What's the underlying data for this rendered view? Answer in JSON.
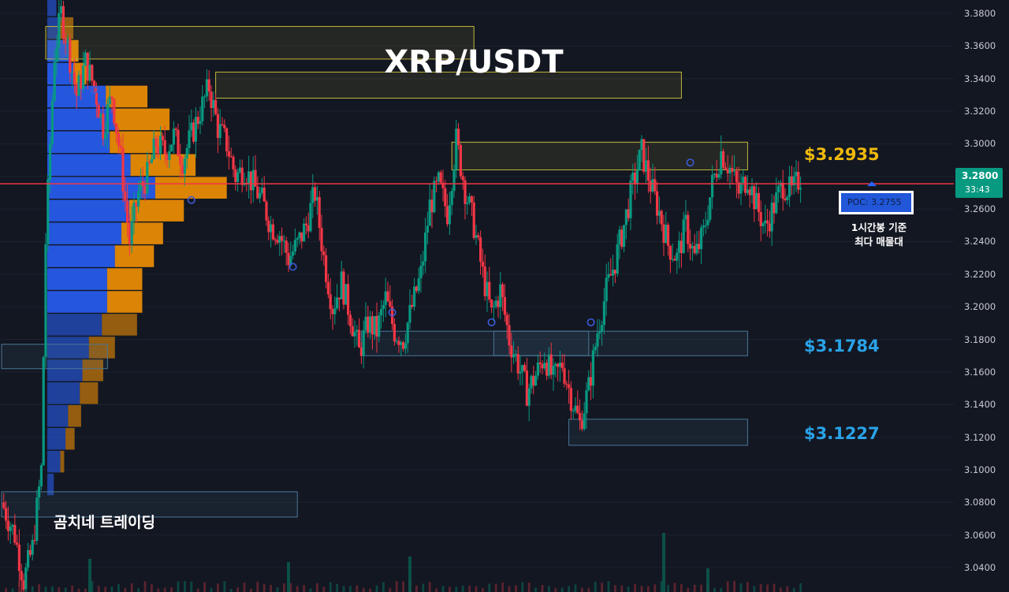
{
  "chart_data": {
    "type": "candlestick",
    "title": "XRP/USDT",
    "watermark": "곰치네 트레이딩",
    "y_axis": {
      "ylim": [
        3.03,
        3.39
      ],
      "ticks": [
        "3.3800",
        "3.3600",
        "3.3400",
        "3.3200",
        "3.3000",
        "3.2800",
        "3.2600",
        "3.2400",
        "3.2200",
        "3.2000",
        "3.1800",
        "3.1600",
        "3.1400",
        "3.1200",
        "3.1000",
        "3.0800",
        "3.0600",
        "3.0400"
      ]
    },
    "current_price": {
      "value": "3.2800",
      "countdown": "33:43"
    },
    "poc": {
      "label": "POC: 3.2755",
      "value": 3.2755,
      "note_line1": "1시간봉 기준",
      "note_line2": "최다 매물대"
    },
    "levels": [
      {
        "label": "$3.2935",
        "value": 3.2935,
        "color": "#f0b90b"
      },
      {
        "label": "$3.1784",
        "value": 3.1784,
        "color": "#29a3e8"
      },
      {
        "label": "$3.1227",
        "value": 3.1227,
        "color": "#29a3e8"
      }
    ],
    "zones": [
      {
        "kind": "supply",
        "from_bar": 20,
        "to_bar": 214,
        "top": 3.372,
        "bottom": 3.352
      },
      {
        "kind": "supply",
        "from_bar": 97,
        "to_bar": 308,
        "top": 3.344,
        "bottom": 3.328
      },
      {
        "kind": "supply",
        "from_bar": 204,
        "to_bar": 338,
        "top": 3.301,
        "bottom": 3.284
      },
      {
        "kind": "demand",
        "from_bar": 0,
        "to_bar": 48,
        "top": 3.177,
        "bottom": 3.162
      },
      {
        "kind": "demand",
        "from_bar": 163,
        "to_bar": 338,
        "top": 3.185,
        "bottom": 3.17
      },
      {
        "kind": "demand",
        "from_bar": 223,
        "to_bar": 266,
        "top": 3.185,
        "bottom": 3.17
      },
      {
        "kind": "demand",
        "from_bar": 257,
        "to_bar": 338,
        "top": 3.131,
        "bottom": 3.115
      },
      {
        "kind": "demand",
        "from_bar": 0,
        "to_bar": 134,
        "top": 3.0865,
        "bottom": 3.071
      }
    ],
    "markers": [
      {
        "bar": 42,
        "value": 3.333
      },
      {
        "bar": 86,
        "value": 3.2655
      },
      {
        "bar": 132,
        "value": 3.2245
      },
      {
        "bar": 177,
        "value": 3.1965
      },
      {
        "bar": 222,
        "value": 3.1905
      },
      {
        "bar": 267,
        "value": 3.1905
      },
      {
        "bar": 312,
        "value": 3.2885
      }
    ],
    "volume_profile": {
      "rows": [
        {
          "price": 3.385,
          "buy": 0.07,
          "sell": 0.0
        },
        {
          "price": 3.371,
          "buy": 0.1,
          "sell": 0.1
        },
        {
          "price": 3.357,
          "buy": 0.18,
          "sell": 0.06
        },
        {
          "price": 3.343,
          "buy": 0.2,
          "sell": 0.1
        },
        {
          "price": 3.329,
          "buy": 0.45,
          "sell": 0.32
        },
        {
          "price": 3.315,
          "buy": 0.52,
          "sell": 0.42
        },
        {
          "price": 3.301,
          "buy": 0.48,
          "sell": 0.4
        },
        {
          "price": 3.287,
          "buy": 0.64,
          "sell": 0.5
        },
        {
          "price": 3.273,
          "buy": 0.83,
          "sell": 0.55
        },
        {
          "price": 3.259,
          "buy": 0.63,
          "sell": 0.42
        },
        {
          "price": 3.245,
          "buy": 0.57,
          "sell": 0.32
        },
        {
          "price": 3.231,
          "buy": 0.52,
          "sell": 0.3
        },
        {
          "price": 3.217,
          "buy": 0.46,
          "sell": 0.27
        },
        {
          "price": 3.203,
          "buy": 0.46,
          "sell": 0.27
        },
        {
          "price": 3.189,
          "buy": 0.42,
          "sell": 0.27
        },
        {
          "price": 3.175,
          "buy": 0.32,
          "sell": 0.2
        },
        {
          "price": 3.161,
          "buy": 0.27,
          "sell": 0.16
        },
        {
          "price": 3.147,
          "buy": 0.25,
          "sell": 0.14
        },
        {
          "price": 3.133,
          "buy": 0.16,
          "sell": 0.1
        },
        {
          "price": 3.119,
          "buy": 0.14,
          "sell": 0.07
        },
        {
          "price": 3.105,
          "buy": 0.1,
          "sell": 0.03
        },
        {
          "price": 3.091,
          "buy": 0.05,
          "sell": 0.0
        }
      ]
    },
    "candles_note": "open/high/low/close series; waypoints approximate the visible path",
    "path": [
      [
        0,
        3.08
      ],
      [
        6,
        3.06
      ],
      [
        10,
        3.032
      ],
      [
        14,
        3.052
      ],
      [
        18,
        3.1
      ],
      [
        20,
        3.24
      ],
      [
        22,
        3.3
      ],
      [
        24,
        3.355
      ],
      [
        27,
        3.38
      ],
      [
        30,
        3.36
      ],
      [
        34,
        3.33
      ],
      [
        38,
        3.35
      ],
      [
        42,
        3.335
      ],
      [
        46,
        3.31
      ],
      [
        50,
        3.33
      ],
      [
        54,
        3.29
      ],
      [
        58,
        3.24
      ],
      [
        62,
        3.27
      ],
      [
        66,
        3.28
      ],
      [
        70,
        3.3
      ],
      [
        74,
        3.295
      ],
      [
        78,
        3.305
      ],
      [
        82,
        3.29
      ],
      [
        86,
        3.305
      ],
      [
        90,
        3.32
      ],
      [
        94,
        3.335
      ],
      [
        98,
        3.31
      ],
      [
        102,
        3.3
      ],
      [
        106,
        3.28
      ],
      [
        110,
        3.285
      ],
      [
        114,
        3.275
      ],
      [
        118,
        3.265
      ],
      [
        122,
        3.25
      ],
      [
        126,
        3.245
      ],
      [
        130,
        3.23
      ],
      [
        134,
        3.238
      ],
      [
        138,
        3.25
      ],
      [
        142,
        3.27
      ],
      [
        146,
        3.23
      ],
      [
        150,
        3.2
      ],
      [
        154,
        3.215
      ],
      [
        158,
        3.195
      ],
      [
        162,
        3.172
      ],
      [
        166,
        3.19
      ],
      [
        170,
        3.185
      ],
      [
        174,
        3.205
      ],
      [
        178,
        3.185
      ],
      [
        182,
        3.18
      ],
      [
        186,
        3.2
      ],
      [
        190,
        3.22
      ],
      [
        194,
        3.262
      ],
      [
        198,
        3.275
      ],
      [
        202,
        3.258
      ],
      [
        206,
        3.302
      ],
      [
        210,
        3.272
      ],
      [
        214,
        3.25
      ],
      [
        218,
        3.22
      ],
      [
        222,
        3.195
      ],
      [
        226,
        3.21
      ],
      [
        230,
        3.18
      ],
      [
        234,
        3.165
      ],
      [
        238,
        3.148
      ],
      [
        242,
        3.158
      ],
      [
        246,
        3.17
      ],
      [
        250,
        3.155
      ],
      [
        254,
        3.165
      ],
      [
        258,
        3.145
      ],
      [
        262,
        3.128
      ],
      [
        266,
        3.15
      ],
      [
        270,
        3.185
      ],
      [
        274,
        3.21
      ],
      [
        278,
        3.228
      ],
      [
        282,
        3.25
      ],
      [
        286,
        3.275
      ],
      [
        290,
        3.295
      ],
      [
        294,
        3.275
      ],
      [
        298,
        3.258
      ],
      [
        302,
        3.238
      ],
      [
        306,
        3.23
      ],
      [
        310,
        3.25
      ],
      [
        314,
        3.23
      ],
      [
        318,
        3.245
      ],
      [
        322,
        3.275
      ],
      [
        326,
        3.295
      ],
      [
        330,
        3.285
      ],
      [
        334,
        3.27
      ],
      [
        338,
        3.28
      ],
      [
        342,
        3.262
      ],
      [
        346,
        3.248
      ],
      [
        350,
        3.262
      ],
      [
        354,
        3.275
      ],
      [
        358,
        3.27
      ],
      [
        362,
        3.28
      ]
    ],
    "volume_spikes": [
      {
        "bar": 40,
        "value": 0.42
      },
      {
        "bar": 130,
        "value": 0.38
      },
      {
        "bar": 185,
        "value": 0.45
      },
      {
        "bar": 300,
        "value": 0.75
      },
      {
        "bar": 320,
        "value": 0.3
      }
    ],
    "colors": {
      "background": "#131722",
      "up": "#089981",
      "down": "#f23645",
      "poc_line": "#f23645",
      "profile_buy": "#2962ff",
      "profile_sell": "#ff9800",
      "supply_border": "#c2b63a",
      "demand_border": "#4a7797",
      "marker": "#3d5bd9"
    }
  }
}
